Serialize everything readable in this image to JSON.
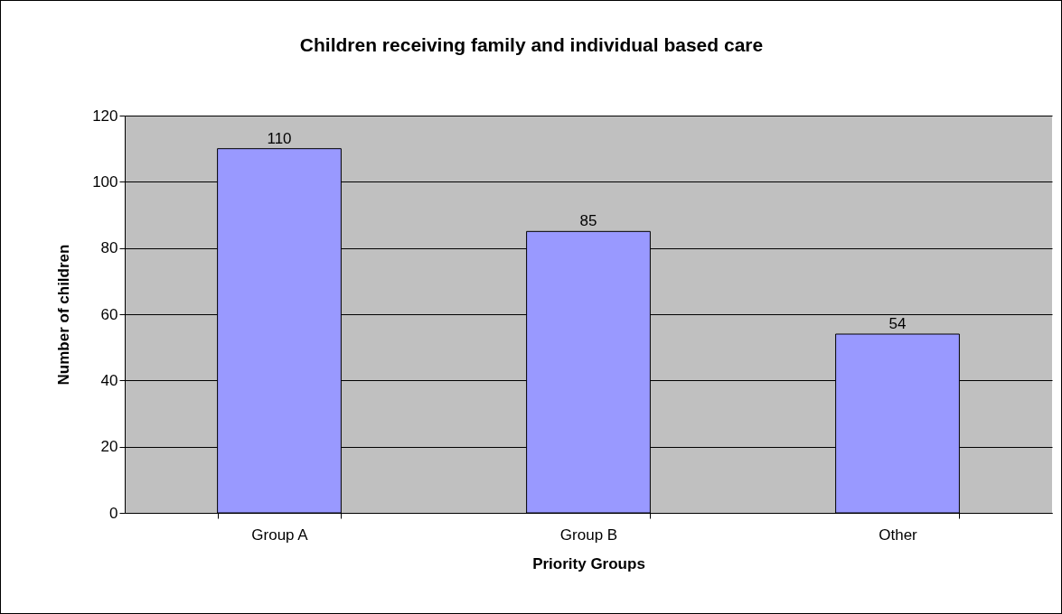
{
  "chart_data": {
    "type": "bar",
    "title": "Children receiving family and individual based care",
    "xlabel": "Priority Groups",
    "ylabel": "Number of children",
    "categories": [
      "Group A",
      "Group B",
      "Other"
    ],
    "values": [
      110,
      85,
      54
    ],
    "color": "#9999ff",
    "ylim": [
      0,
      120
    ],
    "yticks": [
      0,
      20,
      40,
      60,
      80,
      100,
      120
    ],
    "grid": "y",
    "data_labels": true
  }
}
